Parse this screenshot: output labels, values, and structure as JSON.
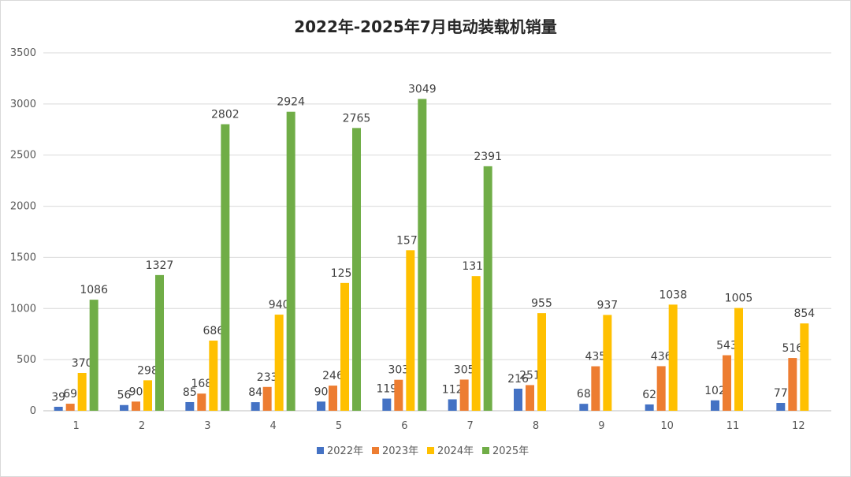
{
  "chart_data": {
    "type": "bar",
    "title": "2022年-2025年7月电动装载机销量",
    "xlabel": "",
    "ylabel": "",
    "ylim": [
      0,
      3500
    ],
    "yticks": [
      0,
      500,
      1000,
      1500,
      2000,
      2500,
      3000,
      3500
    ],
    "categories": [
      "1",
      "2",
      "3",
      "4",
      "5",
      "6",
      "7",
      "8",
      "9",
      "10",
      "11",
      "12"
    ],
    "grid": true,
    "legend_position": "bottom",
    "series": [
      {
        "name": "2022年",
        "color": "#4472c4",
        "values": [
          39,
          56,
          85,
          84,
          90,
          119,
          112,
          216,
          68,
          62,
          102,
          77
        ]
      },
      {
        "name": "2023年",
        "color": "#ed7d31",
        "values": [
          69,
          90,
          168,
          233,
          246,
          303,
          305,
          251,
          435,
          436,
          543,
          516
        ]
      },
      {
        "name": "2024年",
        "color": "#ffc000",
        "values": [
          370,
          298,
          686,
          940,
          1250,
          1570,
          1317,
          955,
          937,
          1038,
          1005,
          854
        ]
      },
      {
        "name": "2025年",
        "color": "#70ad47",
        "values": [
          1086,
          1327,
          2802,
          2924,
          2765,
          3049,
          2391,
          null,
          null,
          null,
          null,
          null
        ]
      }
    ]
  }
}
